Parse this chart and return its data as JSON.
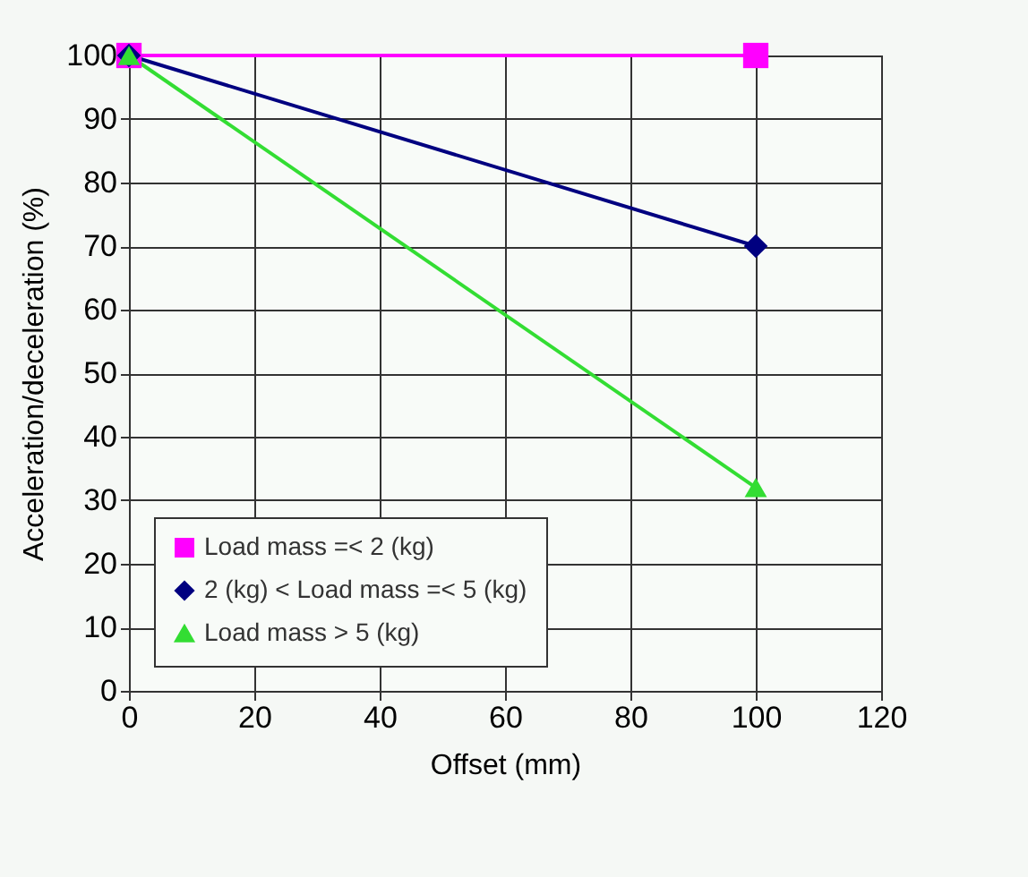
{
  "chart_data": {
    "type": "line",
    "xlabel": "Offset (mm)",
    "ylabel": "Acceleration/deceleration (%)",
    "x": [
      0,
      100
    ],
    "series": [
      {
        "name": "Load mass =< 2 (kg)",
        "color": "#ff00ff",
        "marker": "square",
        "values": [
          100,
          100
        ]
      },
      {
        "name": "2 (kg) < Load mass =< 5 (kg)",
        "color": "#000080",
        "marker": "diamond",
        "values": [
          100,
          70
        ]
      },
      {
        "name": "Load mass > 5 (kg)",
        "color": "#33dd33",
        "marker": "triangle",
        "values": [
          100,
          32
        ]
      }
    ],
    "xlim": [
      0,
      120
    ],
    "xticks": [
      0,
      20,
      40,
      60,
      80,
      100,
      120
    ],
    "ylim": [
      0,
      100
    ],
    "yticks": [
      0,
      10,
      20,
      30,
      40,
      50,
      60,
      70,
      80,
      90,
      100
    ],
    "grid": true,
    "legend": "bottom left",
    "line_style": "solid"
  }
}
